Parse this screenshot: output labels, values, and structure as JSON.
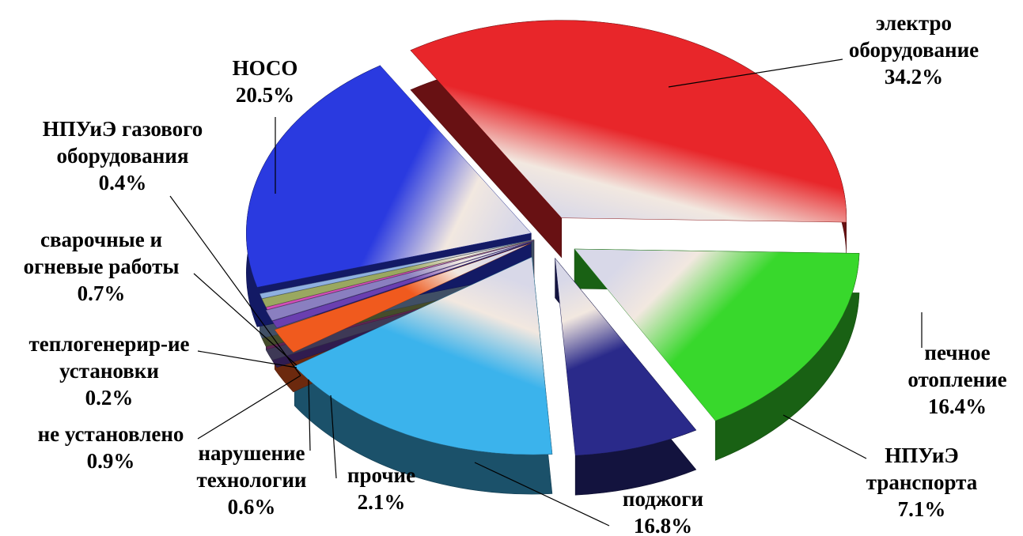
{
  "chart_data": {
    "type": "pie",
    "title": "",
    "slices": [
      {
        "label_lines": [
          "электро",
          "оборудование"
        ],
        "value_text": "34.2%",
        "value": 34.2,
        "color": "#e8262a"
      },
      {
        "label_lines": [
          "печное",
          "отопление"
        ],
        "value_text": "16.4%",
        "value": 16.4,
        "color": "#38d82c"
      },
      {
        "label_lines": [
          "НПУиЭ",
          "транспорта"
        ],
        "value_text": "7.1%",
        "value": 7.1,
        "color": "#2a2a8a"
      },
      {
        "label_lines": [
          "поджоги"
        ],
        "value_text": "16.8%",
        "value": 16.8,
        "color": "#3bb3ec"
      },
      {
        "label_lines": [
          "прочие"
        ],
        "value_text": "2.1%",
        "value": 2.1,
        "color": "#f05a1e"
      },
      {
        "label_lines": [
          "нарушение",
          "технологии"
        ],
        "value_text": "0.6%",
        "value": 0.6,
        "color": "#6a3fb0"
      },
      {
        "label_lines": [
          "не установлено"
        ],
        "value_text": "0.9%",
        "value": 0.9,
        "color": "#8a7fc0"
      },
      {
        "label_lines": [
          "теплогенерир-ие",
          "установки"
        ],
        "value_text": "0.2%",
        "value": 0.2,
        "color": "#d24fb8"
      },
      {
        "label_lines": [
          "сварочные и",
          "огневые работы"
        ],
        "value_text": "0.7%",
        "value": 0.7,
        "color": "#9aa860"
      },
      {
        "label_lines": [
          "НПУиЭ газового",
          "оборудования"
        ],
        "value_text": "0.4%",
        "value": 0.4,
        "color": "#8fb0e0"
      },
      {
        "label_lines": [
          "НОСО"
        ],
        "value_text": "20.5%",
        "value": 20.5,
        "color": "#2a3ae0"
      }
    ]
  }
}
